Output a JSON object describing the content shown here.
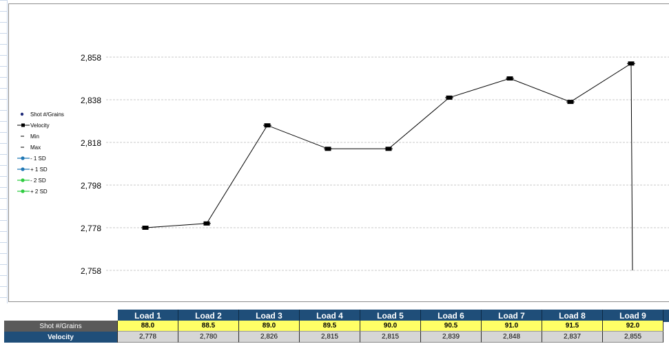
{
  "chart_data": {
    "type": "line",
    "categories": [
      "Load 1",
      "Load 2",
      "Load 3",
      "Load 4",
      "Load 5",
      "Load 6",
      "Load 7",
      "Load 8",
      "Load 9"
    ],
    "series": [
      {
        "name": "Velocity",
        "values": [
          2778,
          2780,
          2826,
          2815,
          2815,
          2839,
          2848,
          2837,
          2855
        ]
      }
    ],
    "y_ticks": [
      "2,858",
      "2,838",
      "2,818",
      "2,798",
      "2,778",
      "2,758"
    ],
    "ylim": [
      2758,
      2858
    ],
    "grid": "horizontal dashed",
    "legend_position": "left",
    "drop_line_after_last": true
  },
  "legend": [
    {
      "label": "Shot #/Grains",
      "color": "#1f2b7a",
      "symbol": "dot"
    },
    {
      "label": "Velocity",
      "color": "#000000",
      "symbol": "line-square"
    },
    {
      "label": "Min",
      "color": "#000000",
      "symbol": "dash"
    },
    {
      "label": "Max",
      "color": "#000000",
      "symbol": "dash"
    },
    {
      "label": "- 1 SD",
      "color": "#1f77b4",
      "symbol": "line-dot"
    },
    {
      "label": "+ 1 SD",
      "color": "#1f77b4",
      "symbol": "line-dot"
    },
    {
      "label": "- 2 SD",
      "color": "#2ecc40",
      "symbol": "line-dot"
    },
    {
      "label": "+ 2 SD",
      "color": "#2ecc40",
      "symbol": "line-dot"
    }
  ],
  "table": {
    "headers": [
      "Load 1",
      "Load 2",
      "Load 3",
      "Load 4",
      "Load 5",
      "Load 6",
      "Load 7",
      "Load 8",
      "Load 9"
    ],
    "row_shot_label": "Shot #/Grains",
    "row_velocity_label": "Velocity",
    "shot": [
      "88.0",
      "88.5",
      "89.0",
      "89.5",
      "90.0",
      "90.5",
      "91.0",
      "91.5",
      "92.0"
    ],
    "velocity": [
      "2,778",
      "2,780",
      "2,826",
      "2,815",
      "2,815",
      "2,839",
      "2,848",
      "2,837",
      "2,855"
    ]
  },
  "colors": {
    "header_bg": "#1f4e79",
    "shot_label_bg": "#5a5a5a",
    "velocity_label_bg": "#1f4e79",
    "shot_cells_bg": "#ffff66",
    "velocity_cells_bg": "#d6d6d6"
  }
}
